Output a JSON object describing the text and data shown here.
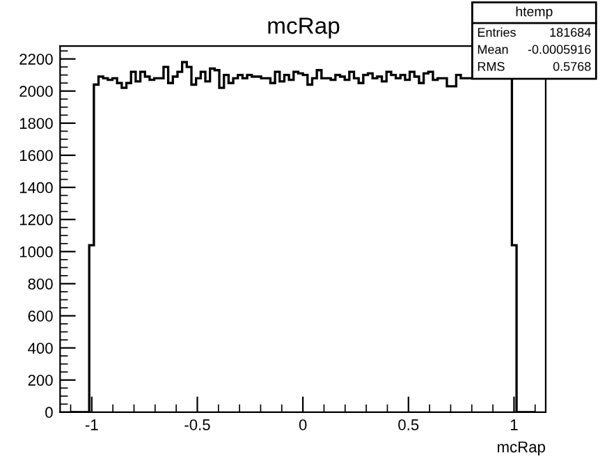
{
  "chart_data": {
    "type": "histogram",
    "title": "mcRap",
    "xlabel": "mcRap",
    "bins": [
      -1.1,
      -1.078,
      -1.056,
      -1.034,
      -1.012,
      -0.99,
      -0.968,
      -0.946,
      -0.924,
      -0.902,
      -0.88,
      -0.858,
      -0.836,
      -0.814,
      -0.792,
      -0.77,
      -0.748,
      -0.726,
      -0.704,
      -0.682,
      -0.66,
      -0.638,
      -0.616,
      -0.594,
      -0.572,
      -0.55,
      -0.528,
      -0.506,
      -0.484,
      -0.462,
      -0.44,
      -0.418,
      -0.396,
      -0.374,
      -0.352,
      -0.33,
      -0.308,
      -0.286,
      -0.264,
      -0.242,
      -0.22,
      -0.198,
      -0.176,
      -0.154,
      -0.132,
      -0.11,
      -0.088,
      -0.066,
      -0.044,
      -0.022,
      0,
      0.022,
      0.044,
      0.066,
      0.088,
      0.11,
      0.132,
      0.154,
      0.176,
      0.198,
      0.22,
      0.242,
      0.264,
      0.286,
      0.308,
      0.33,
      0.352,
      0.374,
      0.396,
      0.418,
      0.44,
      0.462,
      0.484,
      0.506,
      0.528,
      0.55,
      0.572,
      0.594,
      0.616,
      0.638,
      0.66,
      0.682,
      0.704,
      0.726,
      0.748,
      0.77,
      0.792,
      0.814,
      0.836,
      0.858,
      0.88,
      0.902,
      0.924,
      0.946,
      0.968,
      0.99,
      1.012,
      1.034,
      1.056,
      1.078,
      1.1
    ],
    "values": [
      0,
      0,
      0,
      0,
      1040,
      2040,
      2090,
      2080,
      2070,
      2080,
      2050,
      2020,
      2050,
      2120,
      2060,
      2120,
      2090,
      2070,
      2080,
      2080,
      2150,
      2050,
      2090,
      2120,
      2180,
      2150,
      2040,
      2080,
      2120,
      2060,
      2140,
      2130,
      2020,
      2100,
      2050,
      2080,
      2100,
      2080,
      2100,
      2090,
      2090,
      2080,
      2080,
      2050,
      2120,
      2060,
      2100,
      2070,
      2120,
      2110,
      2100,
      2040,
      2080,
      2130,
      2080,
      2080,
      2070,
      2100,
      2090,
      2070,
      2120,
      2080,
      2050,
      2100,
      2110,
      2080,
      2090,
      2060,
      2120,
      2100,
      2080,
      2100,
      2070,
      2120,
      2090,
      2050,
      2110,
      2120,
      2070,
      2080,
      2080,
      2030,
      2030,
      2100,
      2080,
      2080,
      2080,
      2080,
      2080,
      2080,
      2080,
      2080,
      2080,
      2080,
      2080,
      1040,
      0,
      0,
      0,
      0
    ],
    "color": "#000000",
    "xlim": [
      -1.15,
      1.15
    ],
    "xticks": [
      -1,
      -0.5,
      0,
      0.5,
      1
    ],
    "ylim": [
      0,
      2280
    ],
    "yticks": [
      0,
      200,
      400,
      600,
      800,
      1000,
      1200,
      1400,
      1600,
      1800,
      2000,
      2200
    ],
    "annotations": [
      "htemp",
      "Entries",
      "181684",
      "Mean",
      "-0.0005916",
      "RMS",
      "0.5768"
    ]
  }
}
